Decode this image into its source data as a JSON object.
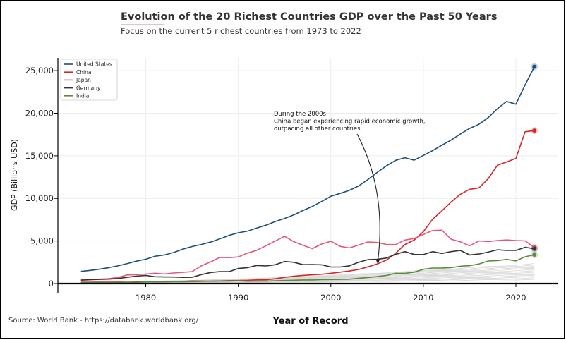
{
  "header": {
    "title": "Evolution of the 20 Richest Countries GDP over the Past 50 Years",
    "subtitle": "Focus on the current 5 richest countries from 1973 to 2022"
  },
  "footer": {
    "source": "Source: World Bank - https://databank.worldbank.org/"
  },
  "chart_data": {
    "type": "line",
    "title": "Evolution of the 20 Richest Countries GDP over the Past 50 Years",
    "subtitle": "Focus on the current 5 richest countries from 1973 to 2022",
    "xlabel": "Year of Record",
    "ylabel": "GDP (Billions USD)",
    "xlim": [
      1970.5,
      2024.5
    ],
    "ylim": [
      0,
      26500
    ],
    "xticks": [
      1980,
      1990,
      2000,
      2010,
      2020
    ],
    "xtick_labels": [
      "1980",
      "1990",
      "2000",
      "2010",
      "2020"
    ],
    "yticks": [
      0,
      5000,
      10000,
      15000,
      20000,
      25000
    ],
    "ytick_labels": [
      "0",
      "5,000",
      "10,000",
      "15,000",
      "20,000",
      "25,000"
    ],
    "grid": true,
    "legend_position": "top-left",
    "x": [
      1973,
      1974,
      1975,
      1976,
      1977,
      1978,
      1979,
      1980,
      1981,
      1982,
      1983,
      1984,
      1985,
      1986,
      1987,
      1988,
      1989,
      1990,
      1991,
      1992,
      1993,
      1994,
      1995,
      1996,
      1997,
      1998,
      1999,
      2000,
      2001,
      2002,
      2003,
      2004,
      2005,
      2006,
      2007,
      2008,
      2009,
      2010,
      2011,
      2012,
      2013,
      2014,
      2015,
      2016,
      2017,
      2018,
      2019,
      2020,
      2021,
      2022
    ],
    "series": [
      {
        "name": "United States",
        "color": "#1f4e79",
        "values": [
          1430,
          1550,
          1690,
          1870,
          2080,
          2350,
          2630,
          2860,
          3210,
          3350,
          3640,
          4040,
          4350,
          4590,
          4870,
          5250,
          5660,
          5960,
          6160,
          6520,
          6860,
          7290,
          7640,
          8070,
          8580,
          9060,
          9630,
          10250,
          10580,
          10940,
          11460,
          12210,
          13040,
          13810,
          14470,
          14770,
          14480,
          15050,
          15600,
          16250,
          16840,
          17550,
          18210,
          18700,
          19480,
          20530,
          21380,
          21060,
          23320,
          25460
        ]
      },
      {
        "name": "China",
        "color": "#d62728",
        "values": [
          140,
          150,
          160,
          150,
          170,
          150,
          180,
          190,
          200,
          200,
          230,
          260,
          310,
          300,
          270,
          310,
          350,
          360,
          380,
          430,
          440,
          560,
          730,
          860,
          960,
          1030,
          1090,
          1210,
          1340,
          1470,
          1660,
          1960,
          2290,
          2750,
          3550,
          4590,
          5100,
          6090,
          7550,
          8530,
          9570,
          10480,
          11060,
          11230,
          12310,
          13890,
          14280,
          14690,
          17820,
          17960
        ]
      },
      {
        "name": "Japan",
        "color": "#e8577a",
        "values": [
          430,
          480,
          520,
          580,
          720,
          1010,
          1050,
          1110,
          1220,
          1130,
          1240,
          1320,
          1400,
          2080,
          2530,
          3070,
          3050,
          3130,
          3580,
          3910,
          4450,
          4990,
          5550,
          4920,
          4490,
          4100,
          4640,
          4970,
          4370,
          4180,
          4520,
          4890,
          4830,
          4600,
          4580,
          5110,
          5290,
          5760,
          6230,
          6270,
          5210,
          4900,
          4440,
          5000,
          4930,
          5040,
          5120,
          5040,
          5010,
          4230
        ]
      },
      {
        "name": "Germany",
        "color": "#333333",
        "values": [
          400,
          450,
          490,
          520,
          600,
          740,
          880,
          950,
          800,
          780,
          770,
          730,
          740,
          1050,
          1300,
          1400,
          1400,
          1770,
          1870,
          2130,
          2070,
          2210,
          2590,
          2500,
          2220,
          2240,
          2200,
          1950,
          1950,
          2080,
          2500,
          2810,
          2850,
          3000,
          3430,
          3750,
          3420,
          3400,
          3750,
          3540,
          3750,
          3890,
          3360,
          3470,
          3690,
          3970,
          3890,
          3890,
          4260,
          4080
        ]
      },
      {
        "name": "India",
        "color": "#5a8a3a",
        "values": [
          90,
          100,
          100,
          100,
          120,
          130,
          150,
          190,
          200,
          200,
          220,
          210,
          230,
          250,
          280,
          300,
          300,
          320,
          270,
          290,
          280,
          330,
          360,
          390,
          420,
          420,
          460,
          470,
          490,
          510,
          610,
          710,
          820,
          940,
          1220,
          1200,
          1340,
          1680,
          1820,
          1830,
          1860,
          2040,
          2100,
          2290,
          2650,
          2700,
          2840,
          2670,
          3150,
          3390
        ]
      }
    ],
    "background_series_note": "",
    "annotation": {
      "lines": [
        "During the 2000s,",
        "China began experiencing rapid economic growth,",
        "outpacing all other countries."
      ],
      "target": {
        "x": 2005,
        "y": 2290
      }
    }
  }
}
